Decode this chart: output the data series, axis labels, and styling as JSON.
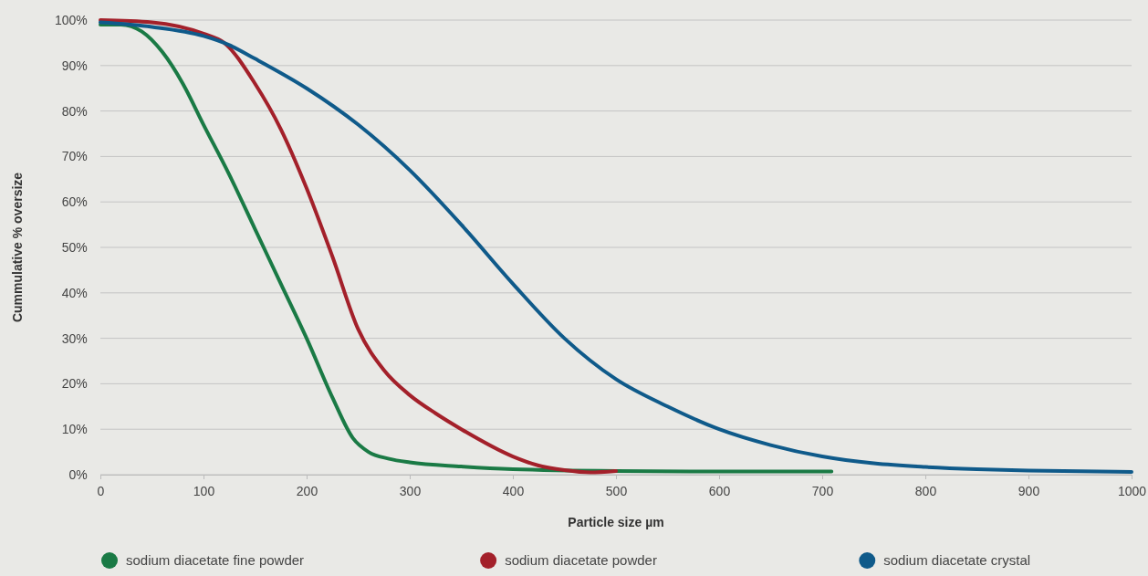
{
  "chart_data": {
    "type": "line",
    "xlabel": "Particle size µm",
    "ylabel": "Cummulative % oversize",
    "xlim": [
      0,
      1000
    ],
    "xticks": [
      0,
      100,
      200,
      300,
      400,
      500,
      600,
      700,
      800,
      900,
      1000
    ],
    "ylim": [
      0,
      100
    ],
    "yticks": [
      {
        "value": 0,
        "label": "0%"
      },
      {
        "value": 10,
        "label": "10%"
      },
      {
        "value": 20,
        "label": "20%"
      },
      {
        "value": 30,
        "label": "30%"
      },
      {
        "value": 40,
        "label": "40%"
      },
      {
        "value": 50,
        "label": "50%"
      },
      {
        "value": 60,
        "label": "60%"
      },
      {
        "value": 70,
        "label": "70%"
      },
      {
        "value": 80,
        "label": "80%"
      },
      {
        "value": 90,
        "label": "90%"
      },
      {
        "value": 100,
        "label": "100%"
      }
    ],
    "grid": "y",
    "legend": "bottom",
    "marker": "none",
    "line_style": "solid",
    "series": [
      {
        "name": "sodium diacetate fine powder",
        "color": "#1a7a45",
        "x": [
          0,
          20,
          40,
          60,
          80,
          100,
          125,
          150,
          175,
          200,
          225,
          245,
          260,
          280,
          300,
          350,
          400,
          500,
          600,
          709
        ],
        "values": [
          99,
          99,
          97.5,
          93,
          86,
          77,
          66,
          54,
          42,
          30,
          17,
          8,
          5,
          3.5,
          2.7,
          1.8,
          1.2,
          0.8,
          0.7,
          0.7
        ]
      },
      {
        "name": "sodium diacetate powder",
        "color": "#a3202a",
        "x": [
          0,
          50,
          100,
          120,
          150,
          175,
          200,
          225,
          250,
          275,
          300,
          325,
          350,
          400,
          425,
          450,
          475,
          500
        ],
        "values": [
          100,
          99.5,
          97,
          95,
          86,
          76,
          63,
          48,
          32,
          23,
          17.5,
          13.5,
          10,
          4,
          2,
          1,
          0.5,
          0.8
        ]
      },
      {
        "name": "sodium diacetate crystal",
        "color": "#0f5a8a",
        "x": [
          0,
          50,
          100,
          125,
          150,
          200,
          250,
          300,
          350,
          400,
          450,
          500,
          550,
          600,
          650,
          700,
          750,
          800,
          850,
          900,
          1000
        ],
        "values": [
          99.5,
          98.5,
          96.5,
          94.5,
          91.5,
          85,
          77,
          67,
          55,
          42,
          30,
          21,
          15,
          10,
          6.5,
          4,
          2.5,
          1.7,
          1.2,
          0.9,
          0.6
        ]
      }
    ]
  }
}
